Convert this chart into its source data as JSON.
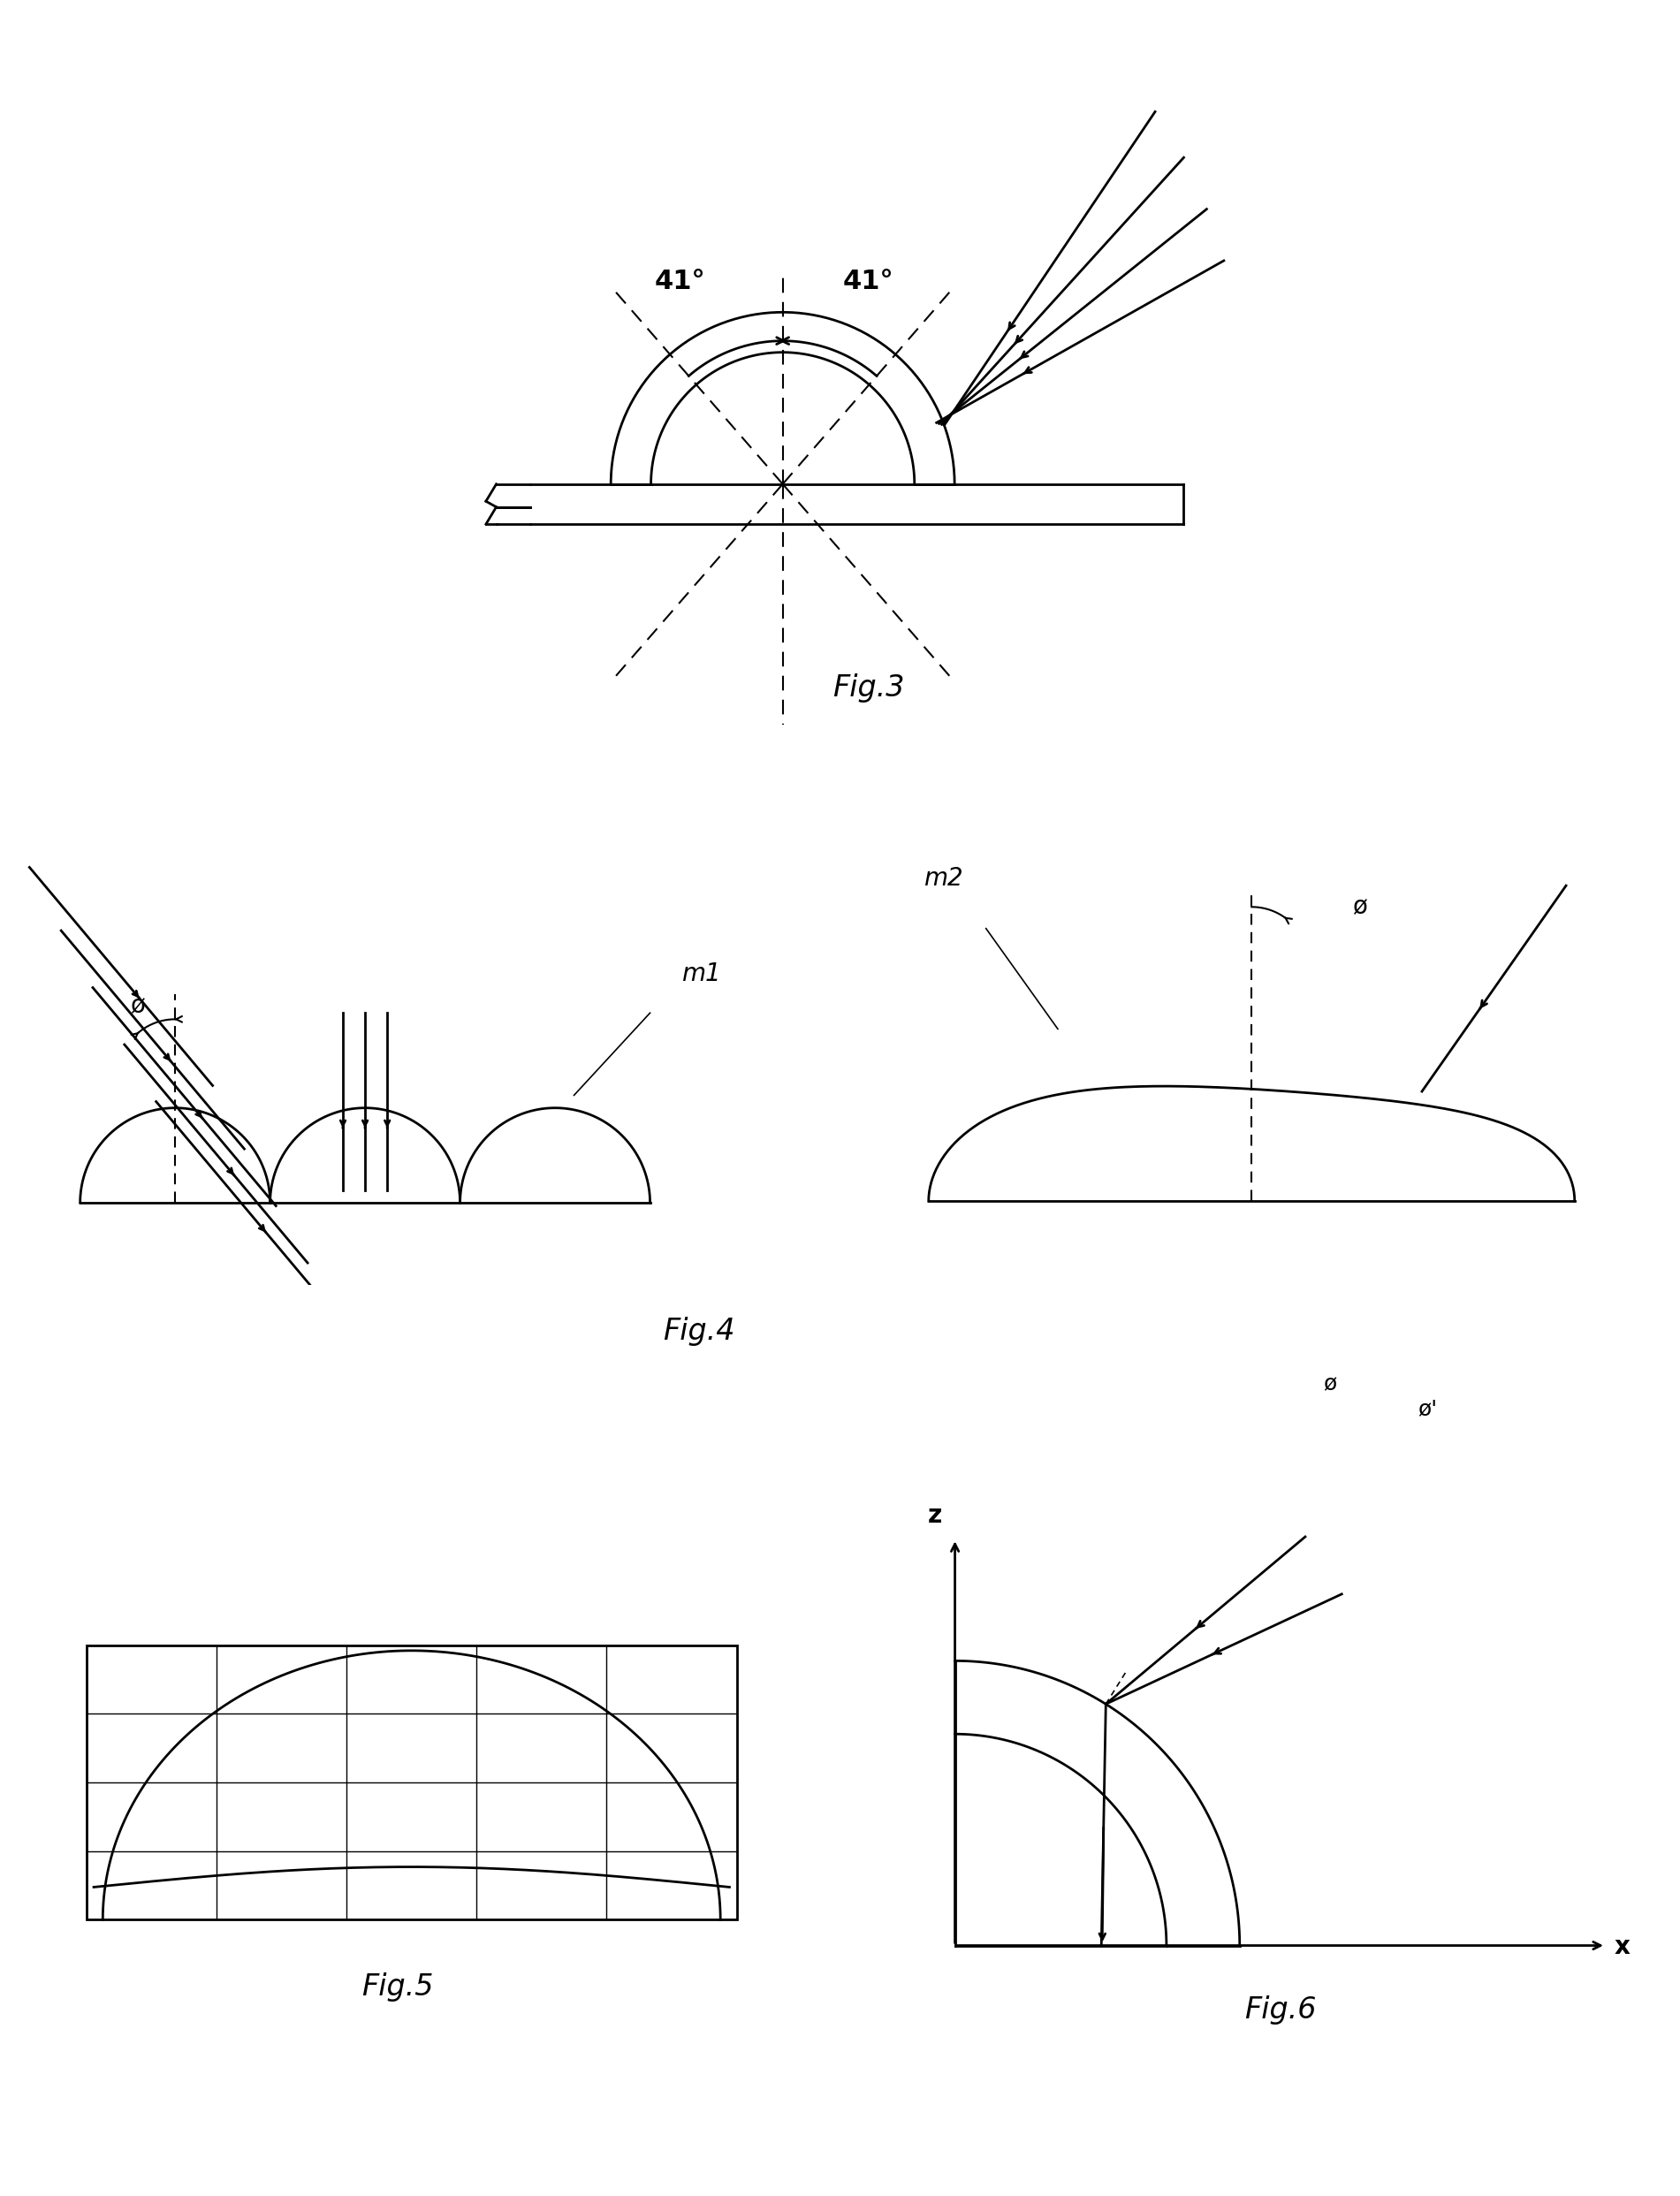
{
  "fig3_title": "Fig.3",
  "fig4_title": "Fig.4",
  "fig5_title": "Fig.5",
  "fig6_title": "Fig.6",
  "angle_label": "41°",
  "m1_label": "m1",
  "m2_label": "m2",
  "phi_label": "ø",
  "phi_prime_label": "ø'",
  "z_label": "z",
  "x_label": "x",
  "bg_color": "#ffffff",
  "line_color": "#000000"
}
